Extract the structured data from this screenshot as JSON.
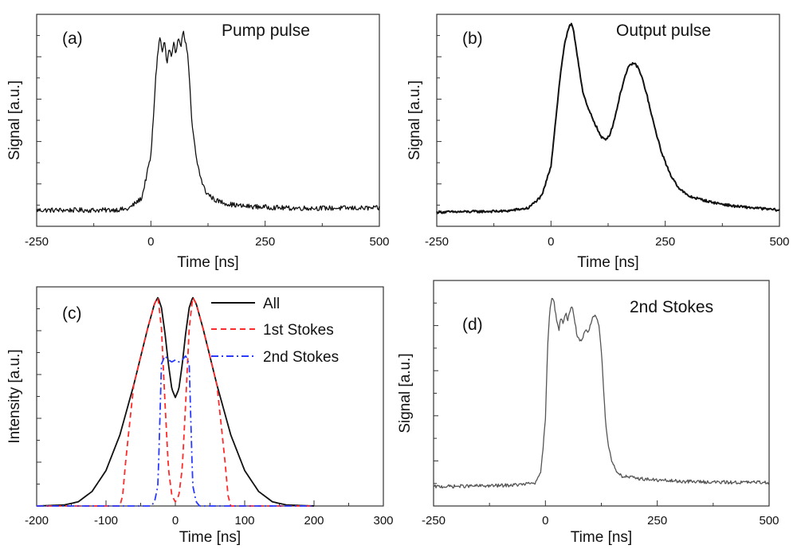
{
  "colors": {
    "axis": "#333333",
    "trace": "#111111",
    "trace_light": "#555555",
    "all": "#111111",
    "first_stokes": "#ff2a2a",
    "second_stokes": "#2a3aff"
  },
  "chart_data": [
    {
      "panel": "a",
      "type": "line",
      "tag": "(a)",
      "annotation": "Pump pulse",
      "xlabel": "Time [ns]",
      "ylabel": "Signal [a.u.]",
      "xlim": [
        -250,
        500
      ],
      "ylim": [
        0,
        10.5
      ],
      "xticks": [
        -250,
        0,
        250,
        500
      ],
      "xtick_labels": [
        "-250",
        "0",
        "250",
        "500"
      ],
      "noise": 0.12,
      "series": [
        {
          "x": [
            -250,
            -100,
            -50,
            -20,
            0,
            5,
            10,
            15,
            20,
            25,
            30,
            35,
            40,
            45,
            50,
            55,
            60,
            65,
            70,
            75,
            80,
            85,
            90,
            100,
            110,
            120,
            140,
            170,
            200,
            250,
            300,
            400,
            500
          ],
          "values": [
            0.8,
            0.8,
            0.85,
            1.4,
            3.5,
            5.2,
            7.2,
            8.6,
            9.4,
            8.6,
            9.2,
            8.0,
            8.8,
            8.3,
            9.0,
            8.6,
            9.5,
            8.8,
            9.7,
            9.2,
            8.6,
            7.0,
            5.0,
            3.3,
            2.3,
            1.7,
            1.3,
            1.1,
            1.0,
            0.95,
            0.9,
            0.9,
            0.9
          ]
        }
      ]
    },
    {
      "panel": "b",
      "type": "line",
      "tag": "(b)",
      "annotation": "Output pulse",
      "xlabel": "Time [ns]",
      "ylabel": "Signal [a.u.]",
      "xlim": [
        -250,
        500
      ],
      "ylim": [
        0,
        10.5
      ],
      "xticks": [
        -250,
        0,
        250,
        500
      ],
      "xtick_labels": [
        "-250",
        "0",
        "250",
        "500"
      ],
      "noise": 0.06,
      "series": [
        {
          "x": [
            -250,
            -100,
            -50,
            -20,
            0,
            10,
            20,
            30,
            40,
            45,
            50,
            60,
            70,
            80,
            90,
            100,
            110,
            120,
            130,
            140,
            150,
            160,
            170,
            180,
            190,
            200,
            210,
            220,
            240,
            260,
            280,
            300,
            350,
            400,
            500
          ],
          "values": [
            0.7,
            0.75,
            0.9,
            1.5,
            3.0,
            5.2,
            7.4,
            9.1,
            9.9,
            10.0,
            9.6,
            8.1,
            6.6,
            5.9,
            5.4,
            4.9,
            4.4,
            4.3,
            4.6,
            5.4,
            6.4,
            7.3,
            7.9,
            8.1,
            7.9,
            7.3,
            6.5,
            5.5,
            3.8,
            2.6,
            1.9,
            1.5,
            1.2,
            1.0,
            0.8
          ]
        }
      ]
    },
    {
      "panel": "c",
      "type": "line",
      "tag": "(c)",
      "xlabel": "Time [ns]",
      "ylabel": "Intensity [a.u.]",
      "xlim": [
        -200,
        300
      ],
      "ylim": [
        0,
        1.05
      ],
      "xticks": [
        -200,
        -100,
        0,
        100,
        200,
        300
      ],
      "xtick_labels": [
        "-200",
        "-100",
        "0",
        "100",
        "200",
        "300"
      ],
      "legend_position": "top-right",
      "series": [
        {
          "name": "All",
          "color_key": "all",
          "dash": "solid",
          "x": [
            -200,
            -160,
            -140,
            -120,
            -100,
            -80,
            -60,
            -40,
            -30,
            -25,
            -20,
            -15,
            -10,
            -5,
            0,
            5,
            10,
            15,
            20,
            25,
            30,
            40,
            60,
            80,
            100,
            120,
            140,
            160,
            200
          ],
          "values": [
            0.0,
            0.005,
            0.02,
            0.07,
            0.17,
            0.34,
            0.58,
            0.85,
            0.97,
            1.0,
            0.95,
            0.83,
            0.68,
            0.56,
            0.52,
            0.56,
            0.68,
            0.83,
            0.95,
            1.0,
            0.97,
            0.85,
            0.58,
            0.34,
            0.17,
            0.07,
            0.02,
            0.005,
            0.0
          ]
        },
        {
          "name": "1st Stokes",
          "color_key": "first_stokes",
          "dash": "dashed",
          "x": [
            -200,
            -80,
            -76,
            -72,
            -68,
            -60,
            -40,
            -30,
            -25,
            -20,
            -15,
            -10,
            -5,
            0,
            5,
            10,
            15,
            20,
            25,
            30,
            40,
            60,
            68,
            72,
            76,
            80,
            200
          ],
          "values": [
            0.0,
            0.0,
            0.05,
            0.2,
            0.33,
            0.58,
            0.85,
            0.97,
            1.0,
            0.85,
            0.5,
            0.18,
            0.05,
            0.02,
            0.05,
            0.18,
            0.5,
            0.85,
            1.0,
            0.97,
            0.85,
            0.58,
            0.33,
            0.2,
            0.05,
            0.0,
            0.0
          ]
        },
        {
          "name": "2nd Stokes",
          "color_key": "second_stokes",
          "dash": "dashdot",
          "x": [
            -200,
            -35,
            -30,
            -25,
            -22,
            -20,
            -15,
            -10,
            -5,
            0,
            5,
            10,
            15,
            20,
            22,
            25,
            30,
            35,
            200
          ],
          "values": [
            0.0,
            0.0,
            0.02,
            0.1,
            0.45,
            0.68,
            0.72,
            0.7,
            0.69,
            0.7,
            0.69,
            0.7,
            0.72,
            0.68,
            0.45,
            0.1,
            0.02,
            0.0,
            0.0
          ]
        }
      ]
    },
    {
      "panel": "d",
      "type": "line",
      "tag": "(d)",
      "annotation": "2nd Stokes",
      "xlabel": "Time [ns]",
      "ylabel": "Signal [a.u.]",
      "xlim": [
        -250,
        500
      ],
      "ylim": [
        0,
        10.5
      ],
      "xticks": [
        -250,
        0,
        250,
        500
      ],
      "xtick_labels": [
        "-250",
        "0",
        "250",
        "500"
      ],
      "noise": 0.08,
      "series": [
        {
          "x": [
            -250,
            -100,
            -50,
            -20,
            -10,
            0,
            5,
            10,
            15,
            20,
            25,
            30,
            35,
            40,
            45,
            50,
            55,
            60,
            65,
            70,
            75,
            80,
            85,
            90,
            95,
            100,
            105,
            110,
            115,
            120,
            125,
            130,
            135,
            140,
            145,
            150,
            160,
            170,
            200,
            250,
            300,
            400,
            500
          ],
          "values": [
            0.9,
            0.95,
            1.0,
            1.1,
            1.6,
            4.0,
            7.5,
            9.2,
            9.8,
            9.4,
            8.6,
            8.2,
            8.8,
            8.5,
            9.0,
            8.7,
            9.1,
            9.3,
            8.7,
            8.0,
            7.8,
            7.6,
            7.9,
            8.2,
            8.0,
            8.4,
            8.7,
            8.9,
            8.8,
            8.4,
            7.2,
            5.5,
            3.8,
            2.9,
            2.4,
            2.0,
            1.6,
            1.4,
            1.3,
            1.2,
            1.15,
            1.1,
            1.1
          ]
        }
      ]
    }
  ]
}
